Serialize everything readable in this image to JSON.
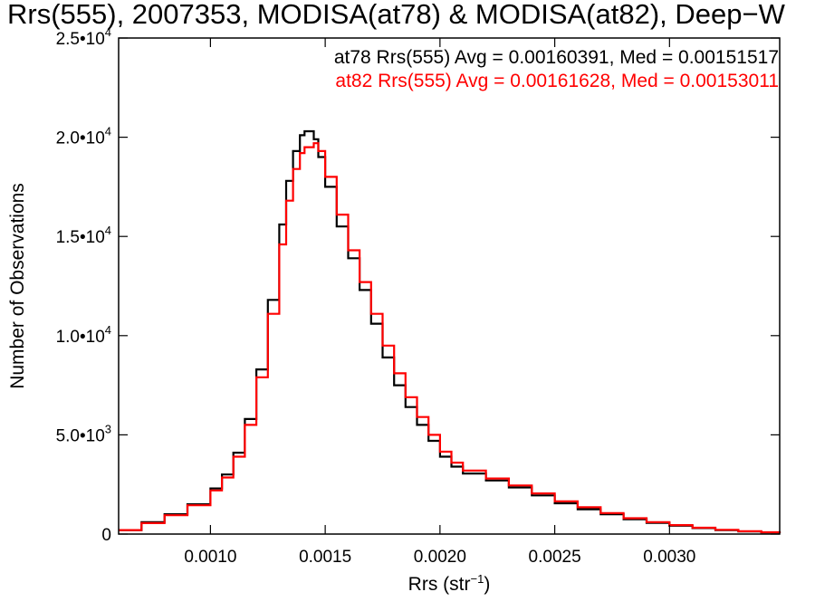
{
  "chart_data": {
    "type": "line",
    "title": "Rrs(555), 2007353, MODISA(at78) & MODISA(at82), Deep−W",
    "xlabel": "Rrs (str",
    "xlabel_superscript": "−1",
    "xlabel_suffix": ")",
    "ylabel": "Number of Observations",
    "xlim": [
      0.0006,
      0.00348
    ],
    "ylim": [
      0,
      25000
    ],
    "x_ticks": [
      {
        "value": 0.001,
        "label": "0.0010"
      },
      {
        "value": 0.0015,
        "label": "0.0015"
      },
      {
        "value": 0.002,
        "label": "0.0020"
      },
      {
        "value": 0.0025,
        "label": "0.0025"
      },
      {
        "value": 0.003,
        "label": "0.0030"
      }
    ],
    "y_ticks": [
      {
        "value": 0,
        "base": "0",
        "exp": ""
      },
      {
        "value": 5000,
        "base": "5.0•10",
        "exp": "3"
      },
      {
        "value": 10000,
        "base": "1.0•10",
        "exp": "4"
      },
      {
        "value": 15000,
        "base": "1.5•10",
        "exp": "4"
      },
      {
        "value": 20000,
        "base": "2.0•10",
        "exp": "4"
      },
      {
        "value": 25000,
        "base": "2.5•10",
        "exp": "4"
      }
    ],
    "colors": {
      "at78": "#000000",
      "at82": "#ff0000"
    },
    "series": [
      {
        "name": "at78",
        "legend": "at78 Rrs(555) Avg = 0.00160391, Med = 0.00151517",
        "color": "#000000",
        "x": [
          0.0006,
          0.0007,
          0.0008,
          0.0009,
          0.001,
          0.00105,
          0.0011,
          0.00115,
          0.0012,
          0.00125,
          0.0013,
          0.00133,
          0.00136,
          0.00139,
          0.00141,
          0.00143,
          0.00145,
          0.00147,
          0.0015,
          0.00155,
          0.0016,
          0.00165,
          0.0017,
          0.00175,
          0.0018,
          0.00185,
          0.0019,
          0.00195,
          0.002,
          0.00205,
          0.0021,
          0.0022,
          0.0023,
          0.0024,
          0.0025,
          0.0026,
          0.0027,
          0.0028,
          0.0029,
          0.003,
          0.0031,
          0.0032,
          0.0033,
          0.0034,
          0.00348
        ],
        "y": [
          200,
          600,
          1000,
          1500,
          2300,
          3000,
          4100,
          5800,
          8300,
          11800,
          15600,
          17800,
          19300,
          20100,
          20300,
          20300,
          19900,
          19000,
          17500,
          15500,
          13900,
          12300,
          10600,
          8900,
          7500,
          6400,
          5500,
          4700,
          3900,
          3400,
          3050,
          2700,
          2350,
          1950,
          1550,
          1250,
          1000,
          750,
          560,
          420,
          300,
          200,
          130,
          80,
          40
        ]
      },
      {
        "name": "at82",
        "legend": "at82 Rrs(555) Avg = 0.00161628, Med = 0.00153011",
        "color": "#ff0000",
        "x": [
          0.0006,
          0.0007,
          0.0008,
          0.0009,
          0.001,
          0.00105,
          0.0011,
          0.00115,
          0.0012,
          0.00125,
          0.0013,
          0.00133,
          0.00136,
          0.00139,
          0.00141,
          0.00143,
          0.00145,
          0.00147,
          0.0015,
          0.00155,
          0.0016,
          0.00165,
          0.0017,
          0.00175,
          0.0018,
          0.00185,
          0.0019,
          0.00195,
          0.002,
          0.00205,
          0.0021,
          0.0022,
          0.0023,
          0.0024,
          0.0025,
          0.0026,
          0.0027,
          0.0028,
          0.0029,
          0.003,
          0.0031,
          0.0032,
          0.0033,
          0.0034,
          0.00348
        ],
        "y": [
          200,
          550,
          950,
          1450,
          2200,
          2850,
          3900,
          5500,
          7900,
          11100,
          14600,
          16800,
          18400,
          19200,
          19500,
          19500,
          19700,
          19300,
          18000,
          16100,
          14300,
          12700,
          11100,
          9500,
          8100,
          6900,
          5900,
          5000,
          4150,
          3600,
          3200,
          2800,
          2450,
          2050,
          1650,
          1350,
          1060,
          800,
          600,
          450,
          320,
          215,
          140,
          90,
          45
        ]
      }
    ]
  }
}
